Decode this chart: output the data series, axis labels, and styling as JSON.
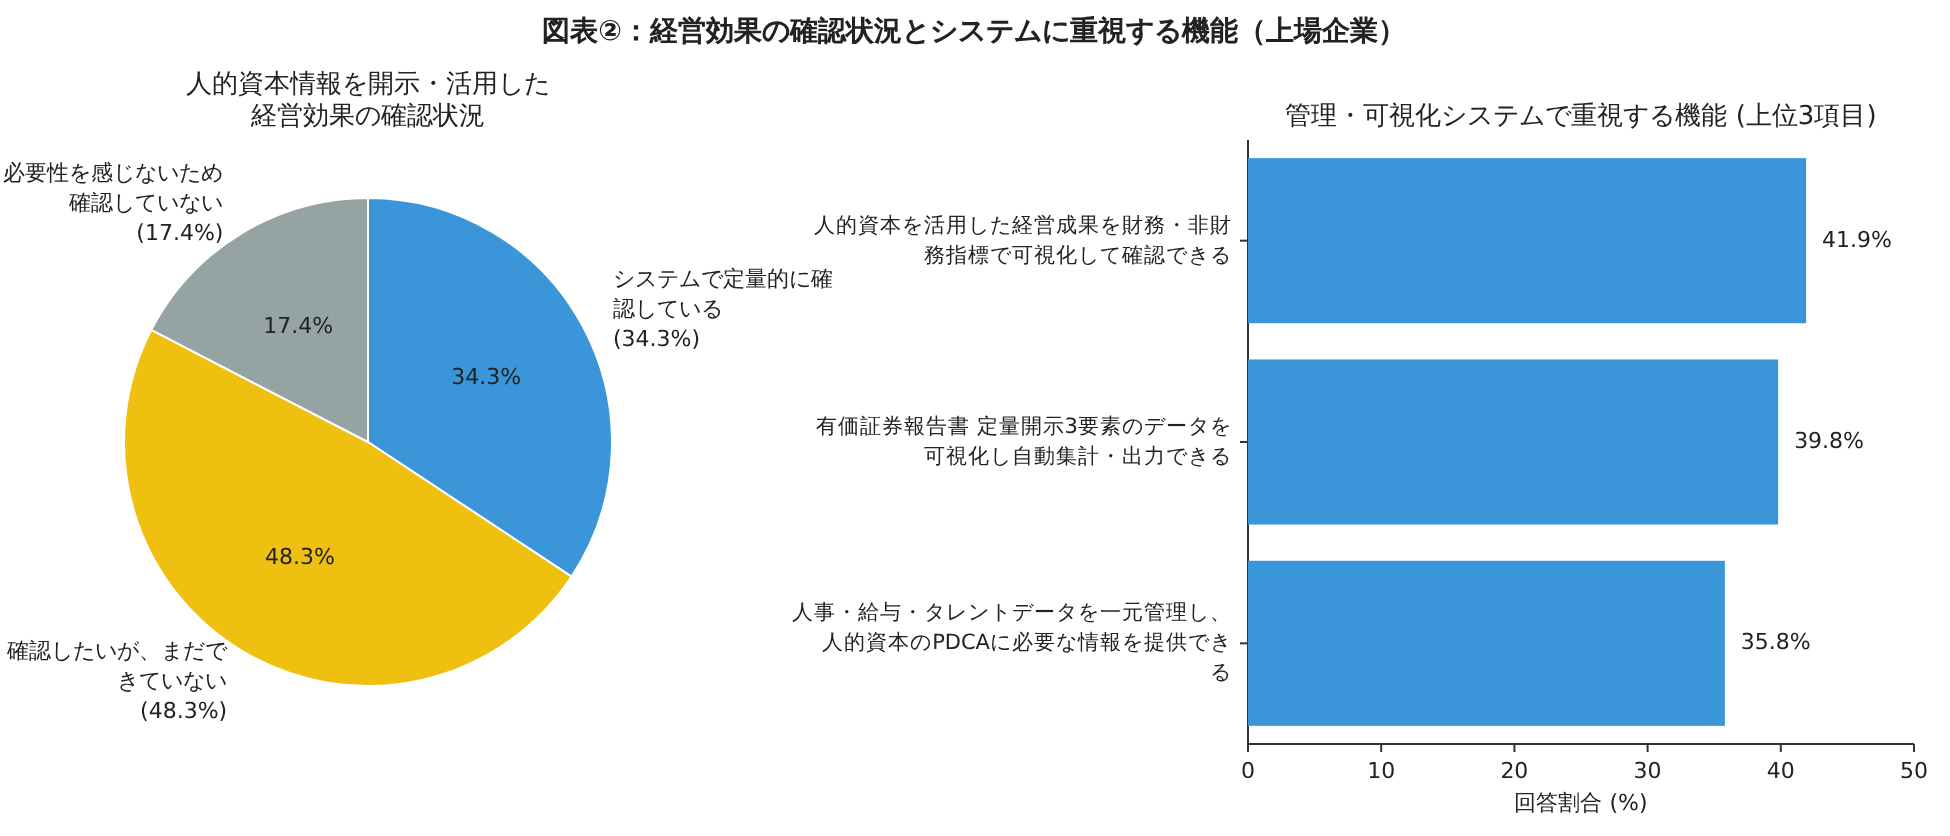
{
  "chart_data": [
    {
      "type": "pie",
      "title": "図表②：経営効果の確認状況とシステムに重視する機能（上場企業）",
      "subtitle": "人的資本情報を開示・活用した経営効果の確認状況",
      "categories": [
        "システムで定量的に確認している",
        "確認したいが、まだできていない",
        "必要性を感じないため確認していない"
      ],
      "values": [
        34.3,
        48.3,
        17.4
      ],
      "value_labels": [
        "34.3%",
        "48.3%",
        "17.4%"
      ],
      "annotations": [
        "(34.3%)",
        "(48.3%)",
        "(17.4%)"
      ],
      "colors": [
        "#3a96d8",
        "#f0c010",
        "#95a3a3"
      ]
    },
    {
      "type": "bar",
      "orientation": "horizontal",
      "title": "管理・可視化システムで重視する機能 (上位3項目)",
      "xlabel": "回答割合 (%)",
      "categories": [
        "人的資本を活用した経営成果を財務・非財務指標で可視化して確認できる",
        "有価証券報告書 定量開示3要素のデータを可視化し自動集計・出力できる",
        "人事・給与・タレントデータを一元管理し、人的資本のPDCAに必要な情報を提供できる"
      ],
      "values": [
        41.9,
        39.8,
        35.8
      ],
      "value_labels": [
        "41.9%",
        "39.8%",
        "35.8%"
      ],
      "color": "#3a96d8",
      "xlim": [
        0,
        50
      ],
      "xticks": [
        0,
        10,
        20,
        30,
        40,
        50
      ]
    }
  ]
}
